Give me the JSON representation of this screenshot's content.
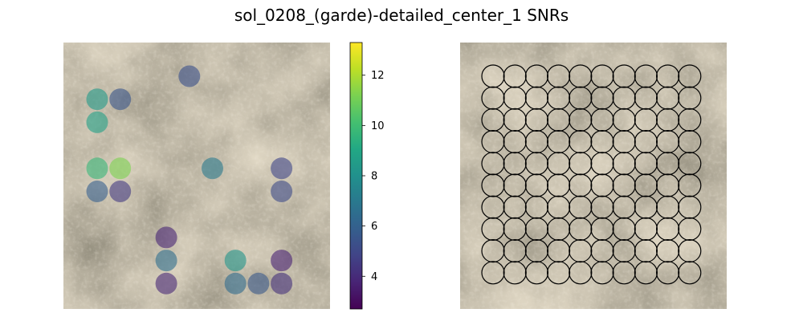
{
  "figure": {
    "title": "sol_0208_(garde)-detailed_center_1 SNRs"
  },
  "colors": {
    "background": "#ffffff",
    "circle_outline": "#000000",
    "texture_base": "#877b67"
  },
  "chart_data": [
    {
      "type": "scatter",
      "name": "snr-overlay",
      "colormap": "viridis",
      "marker_alpha": 0.6,
      "colorbar": {
        "range": [
          2.7,
          13.3
        ],
        "ticks": [
          4,
          6,
          8,
          10,
          12
        ],
        "tick_labels": [
          "4",
          "6",
          "8",
          "10",
          "12"
        ]
      },
      "grid": false,
      "axes_visible": false,
      "points": [
        {
          "col": 5,
          "row": 1,
          "snr": 5.3
        },
        {
          "col": 1,
          "row": 2,
          "snr": 8.4
        },
        {
          "col": 2,
          "row": 2,
          "snr": 5.5
        },
        {
          "col": 1,
          "row": 3,
          "snr": 8.7
        },
        {
          "col": 1,
          "row": 5,
          "snr": 9.7
        },
        {
          "col": 2,
          "row": 5,
          "snr": 11.2
        },
        {
          "col": 6,
          "row": 5,
          "snr": 7.0
        },
        {
          "col": 9,
          "row": 5,
          "snr": 4.9
        },
        {
          "col": 1,
          "row": 6,
          "snr": 5.9
        },
        {
          "col": 2,
          "row": 6,
          "snr": 4.5
        },
        {
          "col": 9,
          "row": 6,
          "snr": 5.1
        },
        {
          "col": 4,
          "row": 8,
          "snr": 3.8
        },
        {
          "col": 4,
          "row": 9,
          "snr": 6.5
        },
        {
          "col": 7,
          "row": 9,
          "snr": 8.2
        },
        {
          "col": 9,
          "row": 9,
          "snr": 3.7
        },
        {
          "col": 4,
          "row": 10,
          "snr": 3.9
        },
        {
          "col": 7,
          "row": 10,
          "snr": 6.4
        },
        {
          "col": 8,
          "row": 10,
          "snr": 5.6
        },
        {
          "col": 9,
          "row": 10,
          "snr": 4.2
        }
      ]
    },
    {
      "type": "scatter",
      "name": "measurement-grid",
      "marker": "open-circle",
      "grid_cols": 10,
      "grid_rows": 10,
      "grid": false,
      "axes_visible": false
    }
  ]
}
